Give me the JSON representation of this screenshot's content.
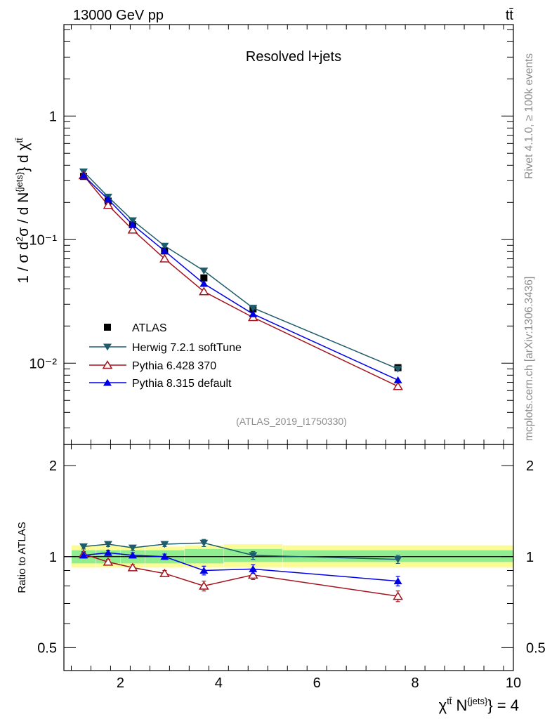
{
  "header": {
    "left_title": "13000 GeV pp",
    "right_title": "tt̄"
  },
  "side_labels": {
    "rivet": "Rivet 4.1.0, ≥ 100k events",
    "mcplots": "mcplots.cern.ch [arXiv:1306.3436]"
  },
  "colors": {
    "data": "#000000",
    "herwig": "#1f5c6b",
    "pythia6": "#a3141e",
    "pythia8": "#0000e6",
    "band_inner": "#90ee90",
    "band_outer": "#fcfc96",
    "watermark": "#8c8c8c"
  },
  "chart_data": [
    {
      "type": "line",
      "panel": "main",
      "title": "Resolved l+jets",
      "watermark": "(ATLAS_2019_I1750330)",
      "ylabel": "1 / σ d²σ / d N^{jets} d χ^{tt̄}",
      "yscale": "log",
      "xlim": [
        0.85,
        10.0
      ],
      "ylim": [
        0.0022,
        5.5
      ],
      "yticks": [
        {
          "value": 1,
          "label": "1"
        },
        {
          "value": 0.1,
          "label": "10⁻¹"
        },
        {
          "value": 0.01,
          "label": "10⁻²"
        }
      ],
      "legend_position": "middle-left",
      "series": [
        {
          "name": "ATLAS",
          "key": "data",
          "marker": "square",
          "x": [
            1.25,
            1.75,
            2.25,
            2.9,
            3.7,
            4.7,
            7.65
          ],
          "values": [
            0.325,
            0.205,
            0.132,
            0.081,
            0.049,
            0.0275,
            0.0092
          ]
        },
        {
          "name": "Herwig 7.2.1 softTune",
          "key": "herwig",
          "marker": "triangle-down",
          "x": [
            1.25,
            1.75,
            2.25,
            2.9,
            3.7,
            4.7,
            7.65
          ],
          "values": [
            0.355,
            0.222,
            0.143,
            0.089,
            0.056,
            0.028,
            0.009
          ]
        },
        {
          "name": "Pythia 6.428 370",
          "key": "pythia6",
          "marker": "triangle-up-open",
          "x": [
            1.25,
            1.75,
            2.25,
            2.9,
            3.7,
            4.7,
            7.65
          ],
          "values": [
            0.33,
            0.19,
            0.12,
            0.07,
            0.038,
            0.0235,
            0.0065
          ]
        },
        {
          "name": "Pythia 8.315 default",
          "key": "pythia8",
          "marker": "triangle-up",
          "x": [
            1.25,
            1.75,
            2.25,
            2.9,
            3.7,
            4.7,
            7.65
          ],
          "values": [
            0.33,
            0.212,
            0.132,
            0.081,
            0.044,
            0.025,
            0.0073
          ]
        }
      ]
    },
    {
      "type": "line",
      "panel": "ratio",
      "ylabel": "Ratio to ATLAS",
      "xlabel": "χ^{tt̄} N^{jets} = 4",
      "yscale": "log",
      "xlim": [
        0.85,
        10.0
      ],
      "ylim": [
        0.42,
        2.35
      ],
      "xticks": [
        2,
        4,
        6,
        8,
        10
      ],
      "yticks": [
        {
          "value": 0.5,
          "label": "0.5"
        },
        {
          "value": 1,
          "label": "1"
        },
        {
          "value": 2,
          "label": "2"
        }
      ],
      "bins": [
        {
          "lo": 1.0,
          "hi": 1.5,
          "inner": [
            0.95,
            1.05
          ],
          "outer": [
            0.92,
            1.09
          ]
        },
        {
          "lo": 1.5,
          "hi": 2.0,
          "inner": [
            0.95,
            1.05
          ],
          "outer": [
            0.92,
            1.09
          ]
        },
        {
          "lo": 2.0,
          "hi": 2.5,
          "inner": [
            0.95,
            1.05
          ],
          "outer": [
            0.92,
            1.08
          ]
        },
        {
          "lo": 2.5,
          "hi": 3.3,
          "inner": [
            0.95,
            1.05
          ],
          "outer": [
            0.92,
            1.08
          ]
        },
        {
          "lo": 3.3,
          "hi": 4.1,
          "inner": [
            0.95,
            1.06
          ],
          "outer": [
            0.92,
            1.09
          ]
        },
        {
          "lo": 4.1,
          "hi": 5.3,
          "inner": [
            0.96,
            1.06
          ],
          "outer": [
            0.92,
            1.1
          ]
        },
        {
          "lo": 5.3,
          "hi": 10.0,
          "inner": [
            0.96,
            1.05
          ],
          "outer": [
            0.92,
            1.09
          ]
        }
      ],
      "series": [
        {
          "name": "Herwig 7.2.1 softTune",
          "key": "herwig",
          "marker": "triangle-down",
          "x": [
            1.25,
            1.75,
            2.25,
            2.9,
            3.7,
            4.7,
            7.65
          ],
          "values": [
            1.08,
            1.1,
            1.07,
            1.1,
            1.11,
            1.01,
            0.98
          ],
          "errors": [
            0.02,
            0.02,
            0.02,
            0.02,
            0.03,
            0.03,
            0.03
          ]
        },
        {
          "name": "Pythia 6.428 370",
          "key": "pythia6",
          "marker": "triangle-up-open",
          "x": [
            1.25,
            1.75,
            2.25,
            2.9,
            3.7,
            4.7,
            7.65
          ],
          "values": [
            1.02,
            0.96,
            0.92,
            0.88,
            0.8,
            0.87,
            0.74
          ],
          "errors": [
            0.02,
            0.02,
            0.02,
            0.02,
            0.03,
            0.03,
            0.03
          ]
        },
        {
          "name": "Pythia 8.315 default",
          "key": "pythia8",
          "marker": "triangle-up",
          "x": [
            1.25,
            1.75,
            2.25,
            2.9,
            3.7,
            4.7,
            7.65
          ],
          "values": [
            1.01,
            1.03,
            1.01,
            1.0,
            0.9,
            0.91,
            0.83
          ],
          "errors": [
            0.02,
            0.02,
            0.02,
            0.02,
            0.03,
            0.03,
            0.03
          ]
        }
      ]
    }
  ]
}
